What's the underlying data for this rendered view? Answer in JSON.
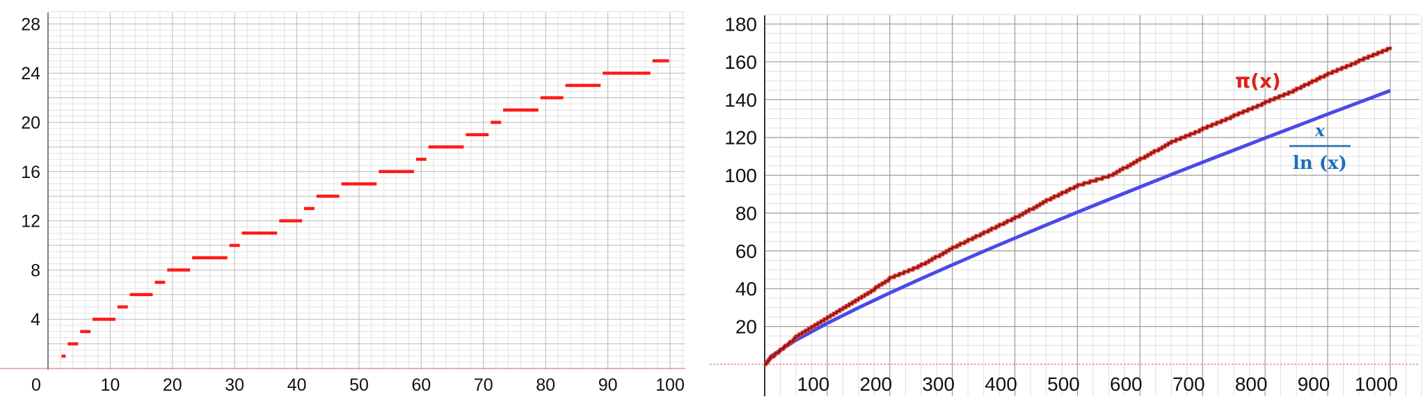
{
  "chart_data": [
    {
      "type": "line",
      "title": "",
      "xlabel": "",
      "ylabel": "",
      "xlim": [
        0,
        102
      ],
      "ylim": [
        0,
        29
      ],
      "x_ticks": [
        "0",
        "10",
        "20",
        "30",
        "40",
        "50",
        "60",
        "70",
        "80",
        "90",
        "100"
      ],
      "y_ticks": [
        "4",
        "8",
        "12",
        "16",
        "20",
        "24",
        "28"
      ],
      "grid": true,
      "series": [
        {
          "color": "#ff1a1a",
          "style": "step",
          "x": [
            2,
            3,
            5,
            7,
            11,
            13,
            17,
            19,
            23,
            29,
            31,
            37,
            41,
            43,
            47,
            53,
            59,
            61,
            67,
            71,
            73,
            79,
            83,
            89,
            97,
            100
          ],
          "y": [
            1,
            2,
            3,
            4,
            5,
            6,
            7,
            8,
            9,
            10,
            11,
            12,
            13,
            14,
            15,
            16,
            17,
            18,
            19,
            20,
            21,
            22,
            23,
            24,
            25,
            25
          ]
        }
      ]
    },
    {
      "type": "line",
      "title": "",
      "xlabel": "",
      "ylabel": "",
      "xlim": [
        0,
        1050
      ],
      "ylim": [
        0,
        185
      ],
      "x_ticks": [
        "100",
        "200",
        "300",
        "400",
        "500",
        "600",
        "700",
        "800",
        "900",
        "1000"
      ],
      "y_ticks": [
        "20",
        "40",
        "60",
        "80",
        "100",
        "120",
        "140",
        "160",
        "180"
      ],
      "grid": true,
      "series": [
        {
          "name": "π(x)",
          "color": "#b3130f",
          "x": [
            0,
            10,
            50,
            100,
            150,
            200,
            250,
            300,
            350,
            400,
            450,
            500,
            550,
            600,
            650,
            700,
            750,
            800,
            850,
            900,
            950,
            1000
          ],
          "y": [
            0,
            4,
            15,
            25,
            35,
            46,
            53,
            62,
            70,
            78,
            87,
            95,
            100,
            109,
            118,
            125,
            132,
            139,
            146,
            154,
            161,
            168
          ]
        },
        {
          "name": "x / ln (x)",
          "color": "#4a4ae8",
          "x": [
            1,
            10,
            50,
            100,
            150,
            200,
            250,
            300,
            350,
            400,
            450,
            500,
            550,
            600,
            650,
            700,
            750,
            800,
            850,
            900,
            950,
            1000
          ],
          "y": [
            0,
            4.34,
            12.78,
            21.71,
            29.94,
            37.75,
            45.28,
            52.6,
            59.75,
            66.76,
            73.66,
            80.46,
            87.17,
            93.79,
            100.36,
            106.86,
            113.29,
            119.68,
            126.02,
            132.31,
            138.56,
            144.76
          ]
        }
      ],
      "labels": {
        "pi": "π(x)",
        "frac_num": "x",
        "frac_den": "ln (x)"
      }
    }
  ]
}
